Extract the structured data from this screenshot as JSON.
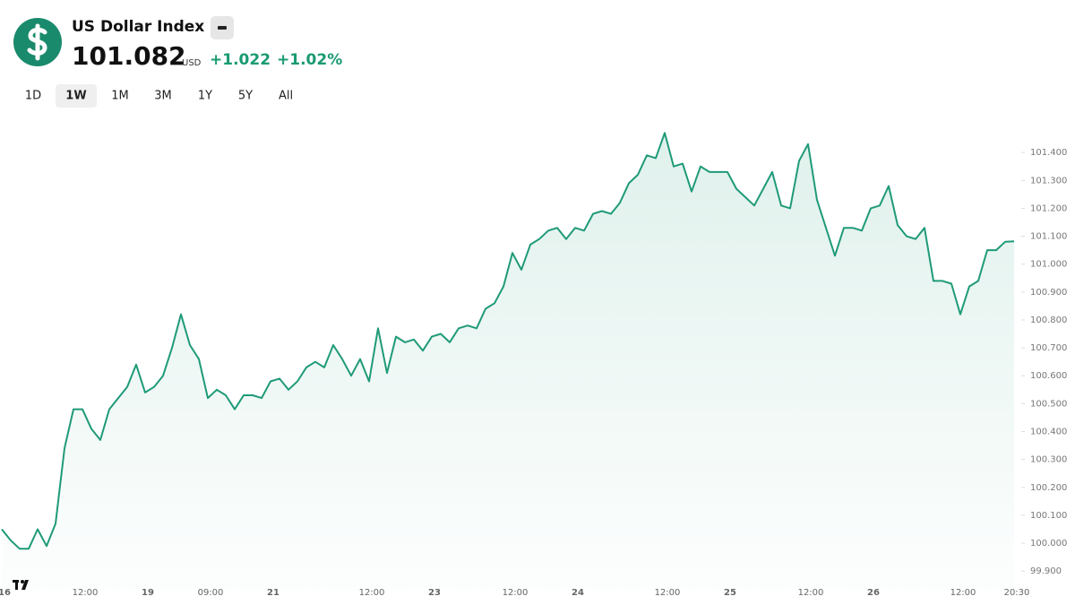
{
  "header": {
    "title": "US Dollar Index",
    "price": "101.082",
    "currency": "USD",
    "change": "+1.022",
    "change_percent": "+1.02%"
  },
  "ranges": [
    "1D",
    "1W",
    "1M",
    "3M",
    "1Y",
    "5Y",
    "All"
  ],
  "active_range": "1W",
  "chart_data": {
    "type": "line",
    "color": "#1f9a78",
    "grid": false,
    "y_axis_side": "right",
    "categories": [
      "16",
      null,
      null,
      null,
      null,
      null,
      null,
      null,
      null,
      "12:00",
      null,
      null,
      null,
      null,
      null,
      null,
      "19",
      null,
      null,
      null,
      null,
      null,
      null,
      "09:00",
      null,
      null,
      null,
      null,
      null,
      null,
      "21",
      null,
      null,
      null,
      null,
      null,
      null,
      null,
      null,
      null,
      null,
      "12:00",
      null,
      null,
      null,
      null,
      null,
      null,
      "23",
      null,
      null,
      null,
      null,
      null,
      null,
      null,
      null,
      "12:00",
      null,
      null,
      null,
      null,
      null,
      null,
      "24",
      null,
      null,
      null,
      null,
      null,
      null,
      null,
      null,
      null,
      "12:00",
      null,
      null,
      null,
      null,
      null,
      null,
      "25",
      null,
      null,
      null,
      null,
      null,
      null,
      null,
      null,
      "12:00",
      null,
      null,
      null,
      null,
      null,
      null,
      "26",
      null,
      null,
      null,
      null,
      null,
      null,
      null,
      null,
      null,
      "12:00",
      null,
      null,
      null,
      null,
      null,
      "20:30"
    ],
    "values": [
      100.05,
      100.01,
      99.98,
      99.98,
      100.05,
      99.99,
      100.07,
      100.34,
      100.48,
      100.48,
      100.41,
      100.37,
      100.48,
      100.52,
      100.56,
      100.64,
      100.54,
      100.56,
      100.6,
      100.7,
      100.82,
      100.71,
      100.66,
      100.52,
      100.55,
      100.53,
      100.48,
      100.53,
      100.53,
      100.52,
      100.58,
      100.59,
      100.55,
      100.58,
      100.63,
      100.65,
      100.63,
      100.71,
      100.66,
      100.6,
      100.66,
      100.58,
      100.77,
      100.61,
      100.74,
      100.72,
      100.73,
      100.69,
      100.74,
      100.75,
      100.72,
      100.77,
      100.78,
      100.77,
      100.84,
      100.86,
      100.92,
      101.04,
      100.98,
      101.07,
      101.09,
      101.12,
      101.13,
      101.09,
      101.13,
      101.12,
      101.18,
      101.19,
      101.18,
      101.22,
      101.29,
      101.32,
      101.39,
      101.38,
      101.47,
      101.35,
      101.36,
      101.26,
      101.35,
      101.33,
      101.33,
      101.33,
      101.27,
      101.24,
      101.21,
      101.27,
      101.33,
      101.21,
      101.2,
      101.37,
      101.43,
      101.23,
      101.13,
      101.03,
      101.13,
      101.13,
      101.12,
      101.2,
      101.21,
      101.28,
      101.14,
      101.1,
      101.09,
      101.13,
      100.94,
      100.94,
      100.93,
      100.82,
      100.92,
      100.94,
      101.05,
      101.05,
      101.08,
      101.082
    ],
    "ylim": [
      99.83,
      101.5
    ],
    "yticks": [
      {
        "value": 99.9,
        "label": "99.900"
      },
      {
        "value": 100.0,
        "label": "100.000"
      },
      {
        "value": 100.1,
        "label": "100.100"
      },
      {
        "value": 100.2,
        "label": "100.200"
      },
      {
        "value": 100.3,
        "label": "100.300"
      },
      {
        "value": 100.4,
        "label": "100.400"
      },
      {
        "value": 100.5,
        "label": "100.500"
      },
      {
        "value": 100.6,
        "label": "100.600"
      },
      {
        "value": 100.7,
        "label": "100.700"
      },
      {
        "value": 100.8,
        "label": "100.800"
      },
      {
        "value": 100.9,
        "label": "100.900"
      },
      {
        "value": 101.0,
        "label": "101.000"
      },
      {
        "value": 101.1,
        "label": "101.100"
      },
      {
        "value": 101.2,
        "label": "101.200"
      },
      {
        "value": 101.3,
        "label": "101.300"
      },
      {
        "value": 101.4,
        "label": "101.400"
      }
    ]
  }
}
